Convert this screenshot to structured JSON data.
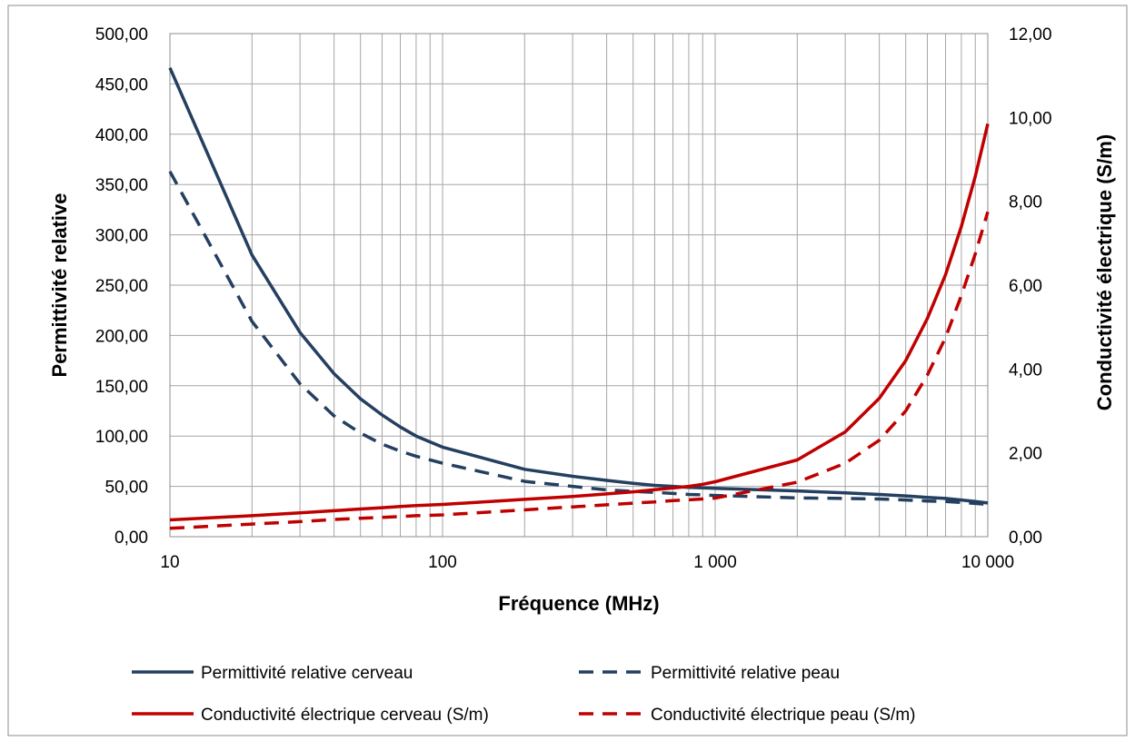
{
  "chart_data": {
    "type": "line",
    "xlabel": "Fréquence (MHz)",
    "ylabel_left": "Permittivité  relative",
    "ylabel_right": "Conductivité  électrique (S/m)",
    "x_scale": "log",
    "xlim": [
      10,
      10000
    ],
    "ylim_left": [
      0,
      500
    ],
    "ylim_right": [
      0,
      12
    ],
    "x_ticks": [
      10,
      100,
      1000,
      10000
    ],
    "x_tick_labels": [
      "10",
      "100",
      "1 000",
      "10 000"
    ],
    "y_left_ticks": [
      0,
      50,
      100,
      150,
      200,
      250,
      300,
      350,
      400,
      450,
      500
    ],
    "y_left_tick_labels": [
      "0,00",
      "50,00",
      "100,00",
      "150,00",
      "200,00",
      "250,00",
      "300,00",
      "350,00",
      "400,00",
      "450,00",
      "500,00"
    ],
    "y_right_ticks": [
      0,
      2,
      4,
      6,
      8,
      10,
      12
    ],
    "y_right_tick_labels": [
      "0,00",
      "2,00",
      "4,00",
      "6,00",
      "8,00",
      "10,00",
      "12,00"
    ],
    "grid": true,
    "legend_position": "bottom",
    "series": [
      {
        "name": "Permittivité relative cerveau",
        "axis": "left",
        "color": "#243F60",
        "style": "solid",
        "x": [
          10,
          20,
          30,
          40,
          50,
          60,
          70,
          80,
          100,
          200,
          300,
          400,
          500,
          600,
          700,
          800,
          900,
          1000,
          2000,
          3000,
          4000,
          5000,
          6000,
          7000,
          8000,
          9000,
          10000
        ],
        "y": [
          466,
          280,
          203,
          162,
          137,
          121,
          109,
          100,
          89,
          67,
          60,
          56,
          53,
          51,
          50,
          49,
          48.5,
          48,
          45.5,
          43.5,
          42,
          40.5,
          39,
          38,
          36.5,
          35,
          33.5
        ]
      },
      {
        "name": "Permittivité relative peau",
        "axis": "left",
        "color": "#243F60",
        "style": "dashed",
        "x": [
          10,
          20,
          30,
          40,
          50,
          60,
          70,
          80,
          100,
          200,
          300,
          400,
          500,
          600,
          700,
          800,
          900,
          1000,
          2000,
          3000,
          4000,
          5000,
          6000,
          7000,
          8000,
          9000,
          10000
        ],
        "y": [
          363,
          214,
          152,
          120,
          103,
          92,
          85,
          80,
          73,
          55,
          50,
          46.5,
          45,
          44,
          43,
          42,
          41.5,
          41,
          38.5,
          38,
          37.5,
          36.5,
          35.5,
          35,
          34,
          33,
          32
        ]
      },
      {
        "name": "Conductivité électrique cerveau (S/m)",
        "axis": "right",
        "color": "#C00000",
        "style": "solid",
        "x": [
          10,
          20,
          30,
          40,
          50,
          60,
          70,
          80,
          100,
          200,
          300,
          400,
          500,
          600,
          700,
          800,
          900,
          1000,
          2000,
          3000,
          4000,
          5000,
          6000,
          7000,
          8000,
          9000,
          10000
        ],
        "y": [
          0.4,
          0.5,
          0.57,
          0.62,
          0.66,
          0.69,
          0.72,
          0.74,
          0.77,
          0.89,
          0.96,
          1.02,
          1.07,
          1.12,
          1.16,
          1.2,
          1.25,
          1.31,
          1.83,
          2.5,
          3.3,
          4.2,
          5.2,
          6.25,
          7.4,
          8.6,
          9.85
        ]
      },
      {
        "name": "Conductivité électrique peau (S/m)",
        "axis": "right",
        "color": "#C00000",
        "style": "dashed",
        "x": [
          10,
          20,
          30,
          40,
          50,
          60,
          70,
          80,
          100,
          200,
          300,
          400,
          500,
          600,
          700,
          800,
          900,
          1000,
          2000,
          3000,
          4000,
          5000,
          6000,
          7000,
          8000,
          9000,
          10000
        ],
        "y": [
          0.2,
          0.3,
          0.36,
          0.41,
          0.44,
          0.46,
          0.48,
          0.5,
          0.52,
          0.64,
          0.71,
          0.76,
          0.8,
          0.83,
          0.86,
          0.88,
          0.9,
          0.92,
          1.3,
          1.75,
          2.3,
          3.0,
          3.85,
          4.75,
          5.75,
          6.75,
          7.75
        ]
      }
    ]
  }
}
